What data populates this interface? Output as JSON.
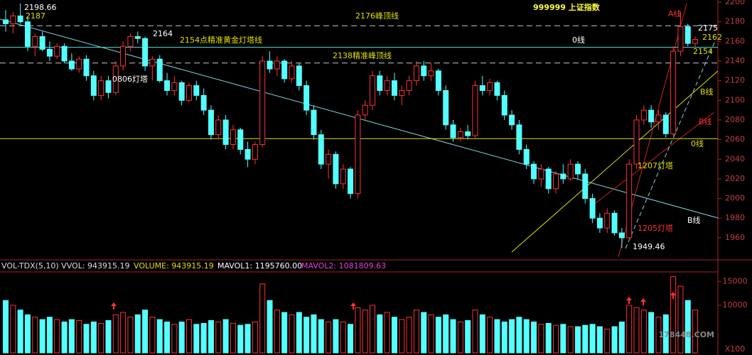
{
  "chart_data": {
    "type": "candlestick",
    "title": "999999 上证指数",
    "up_color": "#ff3232",
    "down_color": "#54ffff",
    "open": [
      2182,
      2178,
      2186,
      2180,
      2155,
      2165,
      2152,
      2145,
      2155,
      2140,
      2132,
      2142,
      2125,
      2105,
      2120,
      2108,
      2135,
      2155,
      2165,
      2163,
      2135,
      2142,
      2120,
      2110,
      2118,
      2100,
      2115,
      2105,
      2090,
      2065,
      2080,
      2055,
      2070,
      2050,
      2040,
      2055,
      2140,
      2132,
      2140,
      2122,
      2135,
      2115,
      2090,
      2065,
      2035,
      2045,
      2015,
      2030,
      2005,
      2085,
      2095,
      2125,
      2110,
      2120,
      2105,
      2110,
      2120,
      2135,
      2125,
      2130,
      2110,
      2075,
      2062,
      2068,
      2064,
      2115,
      2110,
      2118,
      2105,
      2085,
      2075,
      2050,
      2035,
      2020,
      2030,
      2010,
      2025,
      2020,
      2035,
      2025,
      2000,
      1980,
      1970,
      1985,
      1965,
      1960,
      2035,
      2080,
      2090,
      2078,
      2085,
      2066,
      2150,
      2175,
      2158
    ],
    "high": [
      2192,
      2190,
      2198.66,
      2185,
      2168,
      2170,
      2160,
      2158,
      2158,
      2148,
      2145,
      2146,
      2130,
      2125,
      2125,
      2140,
      2160,
      2168,
      2170,
      2165,
      2145,
      2146,
      2128,
      2125,
      2120,
      2118,
      2120,
      2112,
      2095,
      2085,
      2085,
      2075,
      2072,
      2058,
      2058,
      2145,
      2150,
      2145,
      2142,
      2140,
      2138,
      2120,
      2095,
      2070,
      2050,
      2048,
      2035,
      2032,
      2090,
      2100,
      2130,
      2130,
      2125,
      2128,
      2115,
      2125,
      2140,
      2140,
      2138,
      2132,
      2115,
      2080,
      2072,
      2075,
      2120,
      2125,
      2122,
      2120,
      2110,
      2090,
      2080,
      2055,
      2038,
      2035,
      2032,
      2028,
      2035,
      2040,
      2038,
      2030,
      2005,
      1985,
      1990,
      1988,
      1970,
      2040,
      2085,
      2095,
      2095,
      2090,
      2088,
      2155,
      2190,
      2178,
      2165
    ],
    "low": [
      2170,
      2168,
      2178,
      2150,
      2145,
      2150,
      2140,
      2142,
      2138,
      2130,
      2128,
      2120,
      2100,
      2100,
      2102,
      2105,
      2130,
      2150,
      2158,
      2130,
      2120,
      2118,
      2105,
      2105,
      2095,
      2098,
      2100,
      2085,
      2060,
      2060,
      2050,
      2050,
      2045,
      2032,
      2035,
      2052,
      2128,
      2125,
      2118,
      2118,
      2110,
      2085,
      2060,
      2030,
      2020,
      2010,
      2010,
      2000,
      2000,
      2080,
      2090,
      2105,
      2105,
      2100,
      2095,
      2105,
      2115,
      2120,
      2120,
      2105,
      2070,
      2058,
      2058,
      2060,
      2062,
      2105,
      2105,
      2100,
      2080,
      2070,
      2045,
      2030,
      2015,
      2012,
      2005,
      2005,
      2015,
      2018,
      2020,
      1995,
      1975,
      1965,
      1965,
      1962,
      1949.46,
      1958,
      2030,
      2075,
      2072,
      2070,
      2062,
      2064,
      2145,
      2155,
      2154
    ],
    "close": [
      2178,
      2186,
      2180,
      2155,
      2165,
      2152,
      2145,
      2155,
      2140,
      2132,
      2142,
      2125,
      2105,
      2120,
      2108,
      2135,
      2155,
      2165,
      2163,
      2135,
      2142,
      2120,
      2110,
      2118,
      2100,
      2115,
      2105,
      2090,
      2065,
      2080,
      2055,
      2070,
      2050,
      2040,
      2055,
      2140,
      2132,
      2140,
      2122,
      2135,
      2115,
      2090,
      2065,
      2035,
      2045,
      2015,
      2030,
      2005,
      2085,
      2095,
      2125,
      2110,
      2120,
      2105,
      2110,
      2120,
      2135,
      2125,
      2130,
      2110,
      2075,
      2062,
      2068,
      2064,
      2115,
      2110,
      2118,
      2105,
      2085,
      2075,
      2050,
      2035,
      2020,
      2030,
      2010,
      2025,
      2020,
      2035,
      2025,
      2000,
      1980,
      1970,
      1985,
      1965,
      1960,
      2035,
      2080,
      2090,
      2078,
      2085,
      2066,
      2150,
      2175,
      2158,
      2162
    ],
    "volume": [
      11000,
      10000,
      9000,
      8000,
      7500,
      7000,
      7500,
      7000,
      6500,
      7000,
      6800,
      6000,
      6500,
      6200,
      6800,
      8000,
      8500,
      7500,
      8000,
      9000,
      7500,
      7000,
      6500,
      6000,
      6500,
      7000,
      6000,
      6200,
      6800,
      6500,
      7000,
      6200,
      5800,
      6000,
      6500,
      14500,
      11000,
      9000,
      8500,
      8000,
      8500,
      7500,
      8000,
      7000,
      6500,
      7000,
      6500,
      6000,
      9500,
      9000,
      10000,
      8000,
      8500,
      7500,
      7000,
      7500,
      9000,
      8500,
      8000,
      7500,
      8000,
      7000,
      6500,
      6800,
      9000,
      8000,
      7500,
      7000,
      6500,
      7000,
      7500,
      7000,
      6500,
      6000,
      6200,
      5800,
      6000,
      5500,
      5500,
      5800,
      6000,
      5500,
      5000,
      5500,
      6500,
      10000,
      9500,
      9000,
      8500,
      7500,
      8000,
      16000,
      14000,
      11000,
      9000
    ],
    "ylim": [
      1937.5,
      2202.2
    ],
    "yticks": [
      1960,
      1980,
      2000,
      2020,
      2040,
      2060,
      2080,
      2100,
      2120,
      2140,
      2160,
      2180,
      2200
    ],
    "volume_ylim": [
      0,
      17000
    ],
    "volume_yticks": [
      10000,
      15000
    ],
    "volume_unit": "X100",
    "levels": [
      {
        "value": 2176,
        "color": "#c8c8c8",
        "dashed": true
      },
      {
        "value": 2154,
        "color": "#54e0e0",
        "dashed": false
      },
      {
        "value": 2138,
        "color": "#c8c8c8",
        "dashed": true
      },
      {
        "value": 2061,
        "color": "#e0e000",
        "dashed": false
      }
    ],
    "annotations": [
      "2198.66",
      "2187",
      "2164",
      "0806灯塔",
      "2154点精准黄金灯塔线",
      "2176峰顶线",
      "2138精准峰顶线",
      "0线",
      "0线",
      "A线",
      "B线",
      "B线",
      "B线",
      "1207灯塔",
      "1205灯塔",
      "1949.46",
      "2175",
      "2162",
      "2154"
    ],
    "indicator_labels": [
      "VOL-TDX(5,10) VVOL: 943915.19",
      "VOLUME: 943915.19",
      "MAVOL1: 1195760.00",
      "MAVOL2: 1081809.63"
    ],
    "watermark": "178448.COM"
  }
}
